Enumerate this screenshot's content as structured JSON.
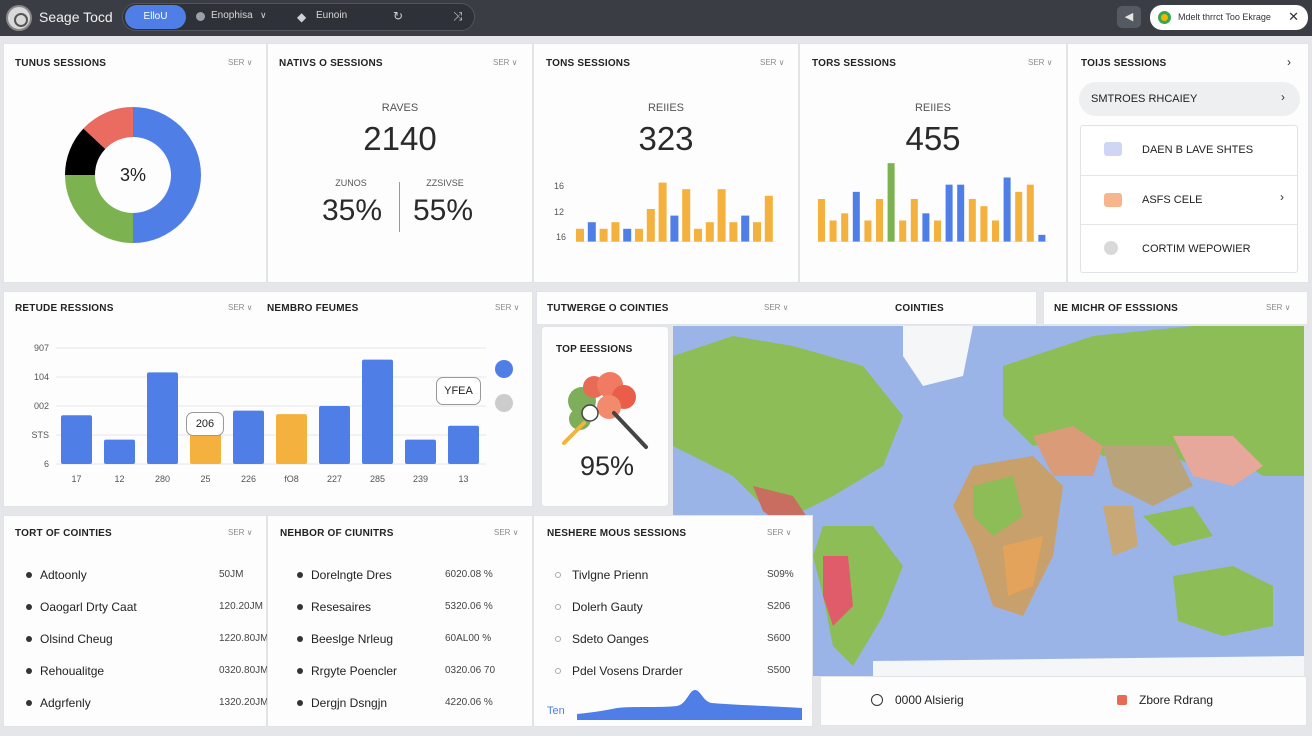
{
  "app": {
    "title": "Seage Tocd"
  },
  "tabs": [
    {
      "label": "ElloU"
    },
    {
      "label": "Enophisa"
    },
    {
      "label": "Eunoin"
    }
  ],
  "notification": {
    "text": "Mdelt thrrct Too Ekrage"
  },
  "cards": {
    "sessions_donut": {
      "title": "TUNUS SESSIONS",
      "menu": "SER ∨",
      "center_value": "3%"
    },
    "natives": {
      "title": "NATIVS O SESSIONS",
      "menu": "SER ∨",
      "label": "RAVES",
      "value": "2140",
      "sub_left_label": "ZUNOS",
      "sub_left_value": "35%",
      "sub_right_label": "ZZSIVSE",
      "sub_right_value": "55%"
    },
    "tons1": {
      "title": "TONS SESSIONS",
      "menu": "SER ∨",
      "label": "REIIES",
      "value": "323",
      "ticks": [
        "16",
        "12",
        "16"
      ]
    },
    "tons2": {
      "title": "TORS SESSIONS",
      "menu": "SER ∨",
      "label": "REIIES",
      "value": "455"
    },
    "tons3": {
      "title": "TOIJS SESSIONS",
      "button_label": "SMTROES RHCAIEY",
      "rows": [
        {
          "label": "DAEN B LAVE SHTES",
          "icon": "puzzle-icon"
        },
        {
          "label": "ASFS CELE",
          "icon": "card-icon"
        },
        {
          "label": "CORTIM WEPOWIER",
          "icon": "gear-icon"
        }
      ]
    },
    "retude": {
      "title": "RETUDE RESSIONS",
      "menu": "SER ∨"
    },
    "nembro": {
      "title": "NEMBRO FEUMES",
      "menu": "SER ∨",
      "y_ticks": [
        "907",
        "104",
        "002",
        "STS",
        "6"
      ],
      "x_ticks": [
        "17",
        "12",
        "280",
        "25",
        "226",
        "fO8",
        "227",
        "285",
        "239",
        "13"
      ],
      "tooltip_a": "206",
      "tooltip_b": "YFEA"
    },
    "tutwerge": {
      "title": "TUTWERGE O COINTIES",
      "menu": "SER ∨",
      "inner_title": "TOP EESSIONS",
      "inner_value": "95%"
    },
    "countries": {
      "title": "COINTIES"
    },
    "ne_michr": {
      "title": "NE MICHR OF ESSSIONS",
      "menu": "SER ∨"
    },
    "tortof": {
      "title": "TORT OF COINTIES",
      "menu": "SER ∨",
      "items": [
        {
          "name": "Adtoonly",
          "value": "50JM"
        },
        {
          "name": "Oaogarl Drty Caat",
          "value": "120.20JM"
        },
        {
          "name": "Olsind Cheug",
          "value": "1220.80JM"
        },
        {
          "name": "Rehoualitge",
          "value": "0320.80JM"
        },
        {
          "name": "Adgrfenly",
          "value": "1320.20JM"
        }
      ]
    },
    "nehbor": {
      "title": "NEHBOR OF CIUNITRS",
      "menu": "SER ∨",
      "items": [
        {
          "name": "Dorelngte Dres",
          "value": "6020.08 %"
        },
        {
          "name": "Resesaires",
          "value": "5320.06 %"
        },
        {
          "name": "Beeslge Nrleug",
          "value": "60AL00 %"
        },
        {
          "name": "Rrgyte Poencler",
          "value": "0320.06 70"
        },
        {
          "name": "Dergjn Dsngjn",
          "value": "4220.06 %"
        }
      ]
    },
    "neshere": {
      "title": "NESHERE MOUS SESSIONS",
      "menu": "SER ∨",
      "items": [
        {
          "name": "Tivlgne Prienn",
          "value": "S09%"
        },
        {
          "name": "Dolerh Gauty",
          "value": "S206"
        },
        {
          "name": "Sdeto Oanges",
          "value": "S600"
        },
        {
          "name": "Pdel Vosens Drarder",
          "value": "S500"
        }
      ],
      "spark_label": "Ten"
    },
    "map_footer": {
      "left": "0000 Alsierig",
      "right": "Zbore Rdrang"
    }
  },
  "chart_data": [
    {
      "type": "pie",
      "categories": [
        "blue",
        "green",
        "yellow",
        "red"
      ],
      "values": [
        50,
        25,
        12,
        13
      ]
    },
    {
      "type": "bar",
      "series": [
        {
          "values": [
            2,
            3,
            2,
            3,
            2,
            2,
            5,
            9,
            4,
            8,
            2,
            3,
            8,
            3,
            4,
            3,
            7
          ]
        }
      ],
      "ylim": [
        0,
        10
      ]
    },
    {
      "type": "bar",
      "series": [
        {
          "values": [
            6,
            3,
            4,
            7,
            3,
            6,
            11,
            3,
            6,
            4,
            3,
            8,
            8,
            6,
            5,
            3,
            9,
            7,
            8,
            1
          ]
        }
      ],
      "ylim": [
        0,
        12
      ]
    },
    {
      "type": "bar",
      "y_ticks": [
        "907",
        "104",
        "002",
        "STS",
        "6"
      ],
      "categories": [
        "17",
        "12",
        "280",
        "25",
        "226",
        "fO8",
        "227",
        "285",
        "239",
        "13"
      ],
      "values": [
        4.2,
        2.1,
        7.9,
        2.7,
        4.6,
        4.3,
        5.0,
        9.0,
        2.1,
        3.3
      ],
      "ylim": [
        0,
        10
      ]
    }
  ],
  "colors": {
    "blue": "#4f7fe6",
    "orange": "#f4b13d",
    "green": "#7cb24f",
    "red": "#ea6b5f"
  }
}
